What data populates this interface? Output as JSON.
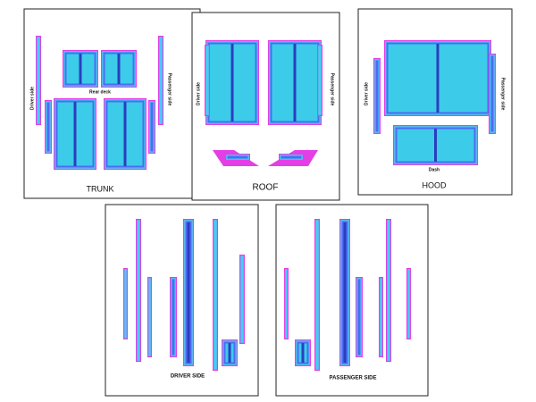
{
  "panels": [
    {
      "title": "TRUNK",
      "labels": [
        "Driver side",
        "Rear deck",
        "Passenger side"
      ]
    },
    {
      "title": "ROOF",
      "labels": [
        "Driver side",
        "Passenger side"
      ]
    },
    {
      "title": "HOOD",
      "labels": [
        "Driver side",
        "Passenger side",
        "Dash"
      ]
    },
    {
      "title": "DRIVER SIDE",
      "labels": []
    },
    {
      "title": "PASSENGER SIDE",
      "labels": []
    }
  ]
}
